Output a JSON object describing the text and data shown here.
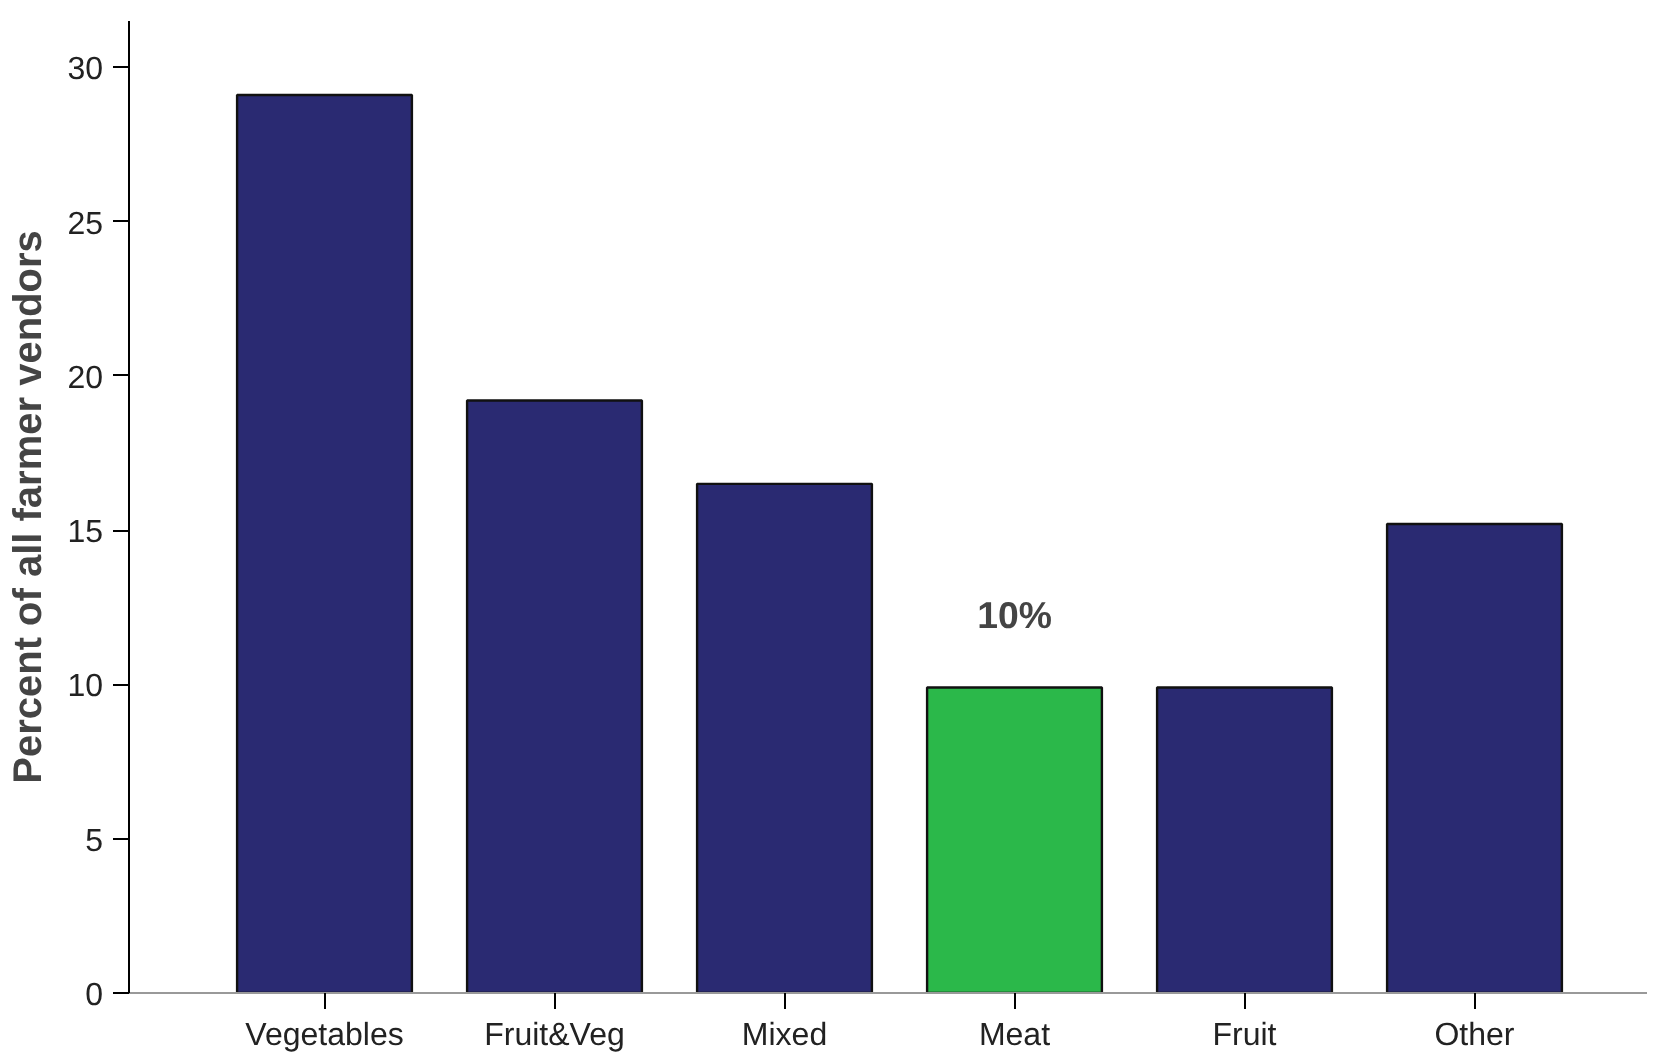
{
  "chart_data": {
    "type": "bar",
    "ylabel": "Percent of all farmer vendors",
    "categories": [
      "Vegetables",
      "Fruit&Veg",
      "Mixed",
      "Meat",
      "Fruit",
      "Other"
    ],
    "values": [
      29.1,
      19.2,
      16.5,
      9.9,
      9.9,
      15.2
    ],
    "colors": [
      "#2a2a72",
      "#2a2a72",
      "#2a2a72",
      "#2bb84a",
      "#2a2a72",
      "#2a2a72"
    ],
    "ylim": [
      0,
      31.5
    ],
    "yticks": [
      0,
      5,
      10,
      15,
      20,
      25,
      30
    ],
    "grid": false,
    "annotations": [
      {
        "text": "10%",
        "x": "Meat",
        "y": 9.9
      }
    ]
  }
}
